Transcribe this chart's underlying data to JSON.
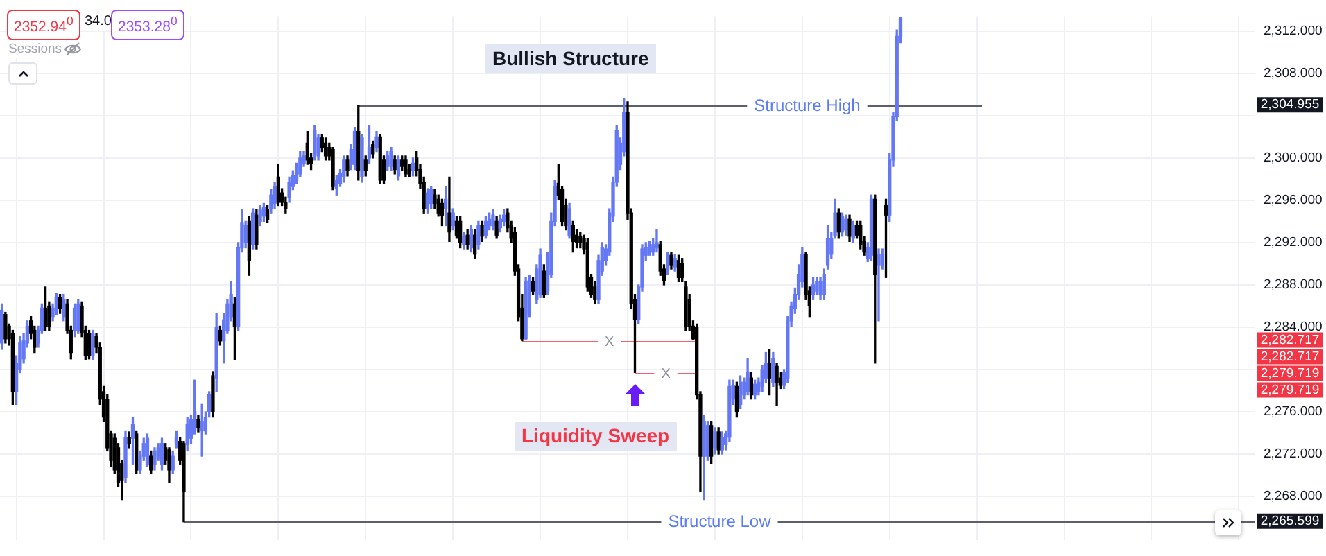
{
  "chart_data": {
    "type": "candlestick",
    "categories": [
      null,
      null,
      null,
      null,
      null,
      null,
      null,
      null,
      null,
      null,
      null,
      null,
      null,
      null,
      null,
      null,
      null,
      null,
      null,
      null,
      null,
      null,
      null,
      null,
      null,
      null,
      null,
      null,
      null,
      null,
      null,
      null,
      null,
      null,
      null,
      null,
      null,
      null,
      null,
      null,
      null,
      null,
      null,
      null,
      null,
      null,
      null,
      null,
      null,
      null,
      null,
      null,
      null,
      null,
      null,
      null,
      null,
      null,
      null,
      null,
      null,
      null,
      null,
      null,
      null,
      null,
      null,
      null,
      null,
      null,
      null,
      null,
      null,
      null,
      null,
      null,
      null,
      null,
      null,
      null,
      null,
      null,
      null,
      null,
      null,
      null,
      null,
      null,
      null,
      null,
      null,
      null,
      null,
      null,
      null,
      null,
      null,
      null,
      null,
      null,
      null,
      null,
      null,
      null,
      null,
      null,
      null,
      null,
      null,
      null,
      null,
      null,
      null,
      null,
      null,
      null,
      null,
      null,
      null,
      null,
      null,
      null,
      null,
      null,
      null,
      null,
      null,
      null,
      null,
      null,
      null,
      null,
      null,
      null,
      null,
      null,
      null,
      null,
      null,
      null,
      null,
      null,
      null,
      null,
      null,
      null,
      null,
      null,
      null,
      null,
      null,
      null,
      null,
      null,
      null,
      null,
      null,
      null,
      null,
      null,
      null,
      null,
      null,
      null,
      null,
      null,
      null,
      null,
      null,
      null,
      null,
      null,
      null,
      null,
      null,
      null,
      null,
      null,
      null,
      null,
      null,
      null,
      null,
      null,
      null,
      null,
      null,
      null,
      null,
      null,
      null,
      null,
      null,
      null,
      null,
      null,
      null,
      null,
      null,
      null,
      null,
      null,
      null,
      null,
      null,
      null,
      null,
      null,
      null,
      null,
      null,
      null,
      null,
      null,
      null,
      null,
      null,
      null,
      null,
      null,
      null,
      null,
      null,
      null,
      null,
      null,
      null,
      null,
      null,
      null,
      null,
      null,
      null,
      null,
      null,
      null,
      null,
      null,
      null,
      null,
      null,
      null,
      null,
      null,
      null,
      null,
      null,
      null,
      null,
      null,
      null,
      null,
      null,
      null,
      null,
      null,
      null,
      null,
      null,
      null,
      null,
      null,
      null,
      null,
      null,
      null,
      null,
      null,
      null,
      null,
      null,
      null,
      null,
      null,
      null,
      null,
      null,
      null,
      null,
      null,
      null,
      null,
      null,
      null,
      null,
      null,
      null,
      null,
      null,
      null,
      null,
      null,
      null,
      null,
      null,
      null,
      null,
      null,
      null,
      null,
      null,
      null,
      null,
      null,
      null,
      null,
      null,
      null,
      null,
      null,
      null,
      null,
      null,
      null,
      null,
      null,
      null,
      null,
      null,
      null,
      null,
      null,
      null,
      null,
      null,
      null,
      null,
      null,
      null,
      null,
      null,
      null,
      null,
      null,
      null,
      null,
      null,
      null,
      null,
      null,
      null,
      null,
      null,
      null,
      null
    ],
    "ohlc": [
      [
        2282.5,
        2286.2,
        2281.9,
        2285.6
      ],
      [
        2285.2,
        2285.4,
        2282.5,
        2282.9
      ],
      [
        2284.1,
        2284.3,
        2282.3,
        2282.9
      ],
      [
        2283.4,
        2283.7,
        2276.7,
        2277.9
      ],
      [
        2277.9,
        2281.3,
        2276.7,
        2280.6
      ],
      [
        2280.0,
        2283.1,
        2279.7,
        2282.5
      ],
      [
        2281.0,
        2283.4,
        2280.6,
        2282.7
      ],
      [
        2282.5,
        2284.6,
        2282.1,
        2284.1
      ],
      [
        2284.6,
        2285.0,
        2282.9,
        2283.4
      ],
      [
        2283.7,
        2284.1,
        2281.6,
        2282.1
      ],
      [
        2282.5,
        2284.1,
        2282.1,
        2283.7
      ],
      [
        2283.7,
        2286.2,
        2283.4,
        2285.8
      ],
      [
        2285.8,
        2287.8,
        2283.7,
        2284.1
      ],
      [
        2286.0,
        2286.4,
        2283.7,
        2284.1
      ],
      [
        2285.0,
        2286.2,
        2284.6,
        2285.8
      ],
      [
        2285.6,
        2287.2,
        2285.2,
        2286.8
      ],
      [
        2286.8,
        2287.1,
        2285.3,
        2285.8
      ],
      [
        2285.0,
        2287.1,
        2284.6,
        2286.6
      ],
      [
        2286.2,
        2286.6,
        2283.4,
        2283.7
      ],
      [
        2283.7,
        2284.1,
        2281.0,
        2281.6
      ],
      [
        2283.7,
        2286.2,
        2283.1,
        2285.8
      ],
      [
        2283.7,
        2286.6,
        2283.4,
        2286.2
      ],
      [
        2286.0,
        2286.4,
        2283.1,
        2283.5
      ],
      [
        2283.7,
        2284.1,
        2280.9,
        2281.3
      ],
      [
        2283.4,
        2283.7,
        2281.0,
        2281.3
      ],
      [
        2281.3,
        2283.7,
        2280.9,
        2283.4
      ],
      [
        2283.1,
        2283.4,
        2281.6,
        2282.1
      ],
      [
        2282.1,
        2282.5,
        2276.7,
        2277.2
      ],
      [
        2277.9,
        2278.4,
        2275.1,
        2275.5
      ],
      [
        2277.2,
        2277.6,
        2272.3,
        2272.6
      ],
      [
        2273.9,
        2274.2,
        2270.8,
        2271.4
      ],
      [
        2273.5,
        2273.9,
        2270.2,
        2270.5
      ],
      [
        2272.6,
        2273.0,
        2268.9,
        2269.3
      ],
      [
        2271.1,
        2271.4,
        2267.7,
        2269.5
      ],
      [
        2269.8,
        2274.2,
        2269.3,
        2273.6
      ],
      [
        2273.6,
        2274.1,
        2272.6,
        2273.0
      ],
      [
        2273.5,
        2275.5,
        2271.0,
        2274.8
      ],
      [
        2273.9,
        2274.2,
        2270.2,
        2270.5
      ],
      [
        2270.5,
        2272.3,
        2270.2,
        2271.8
      ],
      [
        2271.8,
        2273.5,
        2271.4,
        2273.0
      ],
      [
        2271.0,
        2273.9,
        2270.8,
        2273.5
      ],
      [
        2271.8,
        2272.3,
        2270.2,
        2270.5
      ],
      [
        2271.0,
        2272.6,
        2270.5,
        2272.3
      ],
      [
        2271.8,
        2273.0,
        2271.4,
        2272.6
      ],
      [
        2271.0,
        2273.5,
        2270.5,
        2273.0
      ],
      [
        2272.6,
        2273.0,
        2271.0,
        2271.4
      ],
      [
        2272.4,
        2272.6,
        2269.3,
        2270.5
      ],
      [
        2270.5,
        2272.3,
        2270.2,
        2271.8
      ],
      [
        2272.9,
        2274.2,
        2272.6,
        2273.6
      ],
      [
        2273.2,
        2273.6,
        2271.0,
        2271.4
      ],
      [
        2273.0,
        2273.2,
        2265.599,
        2268.5
      ],
      [
        2272.9,
        2275.5,
        2272.3,
        2274.8
      ],
      [
        2273.5,
        2275.7,
        2273.0,
        2275.3
      ],
      [
        2274.2,
        2279.0,
        2273.9,
        2276.0
      ],
      [
        2275.3,
        2275.7,
        2274.1,
        2274.5
      ],
      [
        2274.2,
        2276.7,
        2271.8,
        2275.1
      ],
      [
        2274.2,
        2276.0,
        2273.9,
        2275.5
      ],
      [
        2276.0,
        2277.9,
        2275.5,
        2277.6
      ],
      [
        2279.4,
        2279.8,
        2275.5,
        2276.0
      ],
      [
        2279.2,
        2285.3,
        2277.9,
        2284.0
      ],
      [
        2283.7,
        2284.1,
        2282.3,
        2282.7
      ],
      [
        2282.7,
        2285.3,
        2280.6,
        2284.7
      ],
      [
        2283.7,
        2286.6,
        2283.4,
        2286.2
      ],
      [
        2285.0,
        2288.3,
        2284.6,
        2287.1
      ],
      [
        2286.2,
        2286.8,
        2280.9,
        2284.1
      ],
      [
        2284.1,
        2292.0,
        2283.7,
        2291.5
      ],
      [
        2291.5,
        2295.1,
        2291.1,
        2293.9
      ],
      [
        2292.0,
        2294.0,
        2291.5,
        2293.6
      ],
      [
        2294.0,
        2294.5,
        2288.9,
        2290.3
      ],
      [
        2291.8,
        2295.2,
        2291.4,
        2294.8
      ],
      [
        2294.6,
        2295.1,
        2291.4,
        2291.8
      ],
      [
        2294.0,
        2295.5,
        2293.6,
        2295.1
      ],
      [
        2294.5,
        2295.7,
        2294.0,
        2295.3
      ],
      [
        2295.1,
        2295.5,
        2293.9,
        2294.2
      ],
      [
        2295.2,
        2297.0,
        2294.8,
        2296.5
      ],
      [
        2295.7,
        2297.7,
        2295.2,
        2297.3
      ],
      [
        2298.2,
        2299.4,
        2295.5,
        2295.8
      ],
      [
        2296.7,
        2297.1,
        2295.5,
        2295.8
      ],
      [
        2295.8,
        2296.3,
        2294.8,
        2295.2
      ],
      [
        2296.3,
        2298.2,
        2295.8,
        2297.7
      ],
      [
        2297.3,
        2298.8,
        2297.0,
        2298.3
      ],
      [
        2297.9,
        2299.5,
        2297.6,
        2299.2
      ],
      [
        2298.5,
        2300.6,
        2298.2,
        2300.0
      ],
      [
        2299.5,
        2300.6,
        2299.2,
        2300.2
      ],
      [
        2301.4,
        2302.5,
        2299.4,
        2299.8
      ],
      [
        2300.0,
        2300.4,
        2298.9,
        2299.5
      ],
      [
        2300.4,
        2303.1,
        2299.8,
        2302.6
      ],
      [
        2300.2,
        2302.2,
        2299.8,
        2301.9
      ],
      [
        2301.9,
        2302.2,
        2300.6,
        2301.0
      ],
      [
        2301.4,
        2301.9,
        2299.8,
        2300.2
      ],
      [
        2301.0,
        2301.4,
        2299.8,
        2300.2
      ],
      [
        2300.8,
        2301.0,
        2297.0,
        2297.3
      ],
      [
        2297.1,
        2298.3,
        2296.5,
        2297.9
      ],
      [
        2297.6,
        2298.9,
        2297.3,
        2298.5
      ],
      [
        2298.2,
        2300.2,
        2297.7,
        2299.8
      ],
      [
        2299.8,
        2300.2,
        2298.3,
        2298.8
      ],
      [
        2299.4,
        2301.3,
        2298.9,
        2300.8
      ],
      [
        2299.4,
        2302.9,
        2298.9,
        2302.5
      ],
      [
        2302.5,
        2304.955,
        2297.9,
        2298.8
      ],
      [
        2298.2,
        2302.2,
        2297.7,
        2301.9
      ],
      [
        2299.8,
        2300.2,
        2298.3,
        2298.8
      ],
      [
        2300.0,
        2303.1,
        2299.5,
        2301.0
      ],
      [
        2301.3,
        2301.6,
        2300.0,
        2300.4
      ],
      [
        2301.0,
        2302.5,
        2300.6,
        2302.0
      ],
      [
        2302.0,
        2302.2,
        2297.6,
        2297.9
      ],
      [
        2299.8,
        2300.2,
        2297.6,
        2297.9
      ],
      [
        2299.2,
        2300.6,
        2298.8,
        2300.2
      ],
      [
        2299.2,
        2301.0,
        2298.8,
        2300.6
      ],
      [
        2299.8,
        2300.2,
        2298.5,
        2298.9
      ],
      [
        2298.3,
        2300.2,
        2297.9,
        2299.8
      ],
      [
        2299.8,
        2300.2,
        2298.8,
        2299.2
      ],
      [
        2299.8,
        2300.2,
        2298.2,
        2298.5
      ],
      [
        2298.9,
        2299.4,
        2298.2,
        2298.5
      ],
      [
        2298.8,
        2300.0,
        2298.3,
        2299.5
      ],
      [
        2300.0,
        2300.6,
        2298.3,
        2298.8
      ],
      [
        2298.9,
        2299.4,
        2297.1,
        2297.6
      ],
      [
        2297.7,
        2298.2,
        2294.8,
        2295.2
      ],
      [
        2295.2,
        2297.1,
        2294.8,
        2296.7
      ],
      [
        2295.7,
        2297.3,
        2295.2,
        2297.0
      ],
      [
        2296.5,
        2297.0,
        2295.2,
        2295.7
      ],
      [
        2296.1,
        2296.5,
        2294.5,
        2294.8
      ],
      [
        2295.7,
        2296.1,
        2293.6,
        2294.6
      ],
      [
        2295.2,
        2297.3,
        2293.6,
        2296.1
      ],
      [
        2294.8,
        2298.2,
        2292.1,
        2293.0
      ],
      [
        2293.6,
        2295.2,
        2293.2,
        2294.8
      ],
      [
        2294.0,
        2294.5,
        2292.4,
        2292.7
      ],
      [
        2294.0,
        2294.5,
        2291.5,
        2292.0
      ],
      [
        2291.8,
        2293.0,
        2291.4,
        2292.6
      ],
      [
        2292.7,
        2293.2,
        2291.4,
        2291.8
      ],
      [
        2291.5,
        2293.6,
        2291.1,
        2293.2
      ],
      [
        2292.7,
        2293.2,
        2290.5,
        2290.9
      ],
      [
        2291.8,
        2294.0,
        2291.4,
        2293.6
      ],
      [
        2293.6,
        2294.0,
        2292.1,
        2292.6
      ],
      [
        2292.7,
        2294.5,
        2292.4,
        2294.0
      ],
      [
        2293.6,
        2294.8,
        2293.2,
        2294.2
      ],
      [
        2293.6,
        2295.1,
        2293.2,
        2294.6
      ],
      [
        2294.0,
        2294.5,
        2292.4,
        2292.7
      ],
      [
        2293.4,
        2294.6,
        2293.0,
        2294.2
      ],
      [
        2294.0,
        2295.1,
        2293.6,
        2294.6
      ],
      [
        2294.8,
        2295.2,
        2293.0,
        2293.4
      ],
      [
        2293.6,
        2294.0,
        2292.0,
        2292.4
      ],
      [
        2293.0,
        2293.4,
        2288.9,
        2289.3
      ],
      [
        2289.5,
        2289.9,
        2284.6,
        2285.0
      ],
      [
        2285.8,
        2287.1,
        2282.717,
        2282.9
      ],
      [
        2282.9,
        2288.7,
        2282.8,
        2288.3
      ],
      [
        2285.3,
        2288.9,
        2285.0,
        2288.4
      ],
      [
        2288.3,
        2288.7,
        2287.1,
        2287.4
      ],
      [
        2286.6,
        2289.9,
        2286.2,
        2289.5
      ],
      [
        2287.1,
        2291.4,
        2286.8,
        2290.8
      ],
      [
        2289.3,
        2289.9,
        2286.8,
        2287.1
      ],
      [
        2287.4,
        2291.1,
        2287.1,
        2290.8
      ],
      [
        2289.0,
        2294.8,
        2288.7,
        2294.0
      ],
      [
        2294.0,
        2297.9,
        2293.6,
        2297.3
      ],
      [
        2297.6,
        2299.4,
        2296.1,
        2296.5
      ],
      [
        2297.0,
        2297.3,
        2293.6,
        2294.0
      ],
      [
        2295.5,
        2296.1,
        2293.2,
        2293.6
      ],
      [
        2292.7,
        2295.7,
        2292.4,
        2295.2
      ],
      [
        2293.6,
        2294.0,
        2291.1,
        2292.1
      ],
      [
        2292.7,
        2293.2,
        2291.5,
        2292.0
      ],
      [
        2292.6,
        2293.0,
        2291.5,
        2292.0
      ],
      [
        2292.4,
        2292.7,
        2290.9,
        2291.4
      ],
      [
        2292.0,
        2292.4,
        2287.4,
        2287.8
      ],
      [
        2288.7,
        2289.0,
        2286.8,
        2287.1
      ],
      [
        2287.8,
        2288.3,
        2286.2,
        2286.6
      ],
      [
        2286.6,
        2290.8,
        2286.2,
        2290.3
      ],
      [
        2289.3,
        2292.0,
        2288.9,
        2291.5
      ],
      [
        2290.3,
        2291.8,
        2289.9,
        2291.4
      ],
      [
        2291.1,
        2295.2,
        2290.8,
        2294.8
      ],
      [
        2294.5,
        2298.2,
        2294.0,
        2297.7
      ],
      [
        2297.7,
        2303.1,
        2297.3,
        2302.6
      ],
      [
        2299.4,
        2301.9,
        2298.9,
        2301.4
      ],
      [
        2300.6,
        2305.6,
        2300.2,
        2304.3
      ],
      [
        2304.3,
        2305.3,
        2294.2,
        2294.8
      ],
      [
        2294.8,
        2295.2,
        2285.8,
        2286.2
      ],
      [
        2286.6,
        2287.1,
        2279.719,
        2284.7
      ],
      [
        2284.7,
        2288.0,
        2284.3,
        2287.8
      ],
      [
        2287.8,
        2291.8,
        2287.4,
        2291.4
      ],
      [
        2290.8,
        2292.0,
        2290.3,
        2291.5
      ],
      [
        2291.1,
        2292.1,
        2290.8,
        2291.8
      ],
      [
        2291.1,
        2292.4,
        2290.8,
        2291.8
      ],
      [
        2291.5,
        2293.2,
        2291.1,
        2292.0
      ],
      [
        2291.8,
        2292.1,
        2288.9,
        2289.3
      ],
      [
        2289.5,
        2289.9,
        2288.0,
        2288.4
      ],
      [
        2289.5,
        2291.1,
        2289.0,
        2290.8
      ],
      [
        2290.8,
        2291.1,
        2289.5,
        2289.9
      ],
      [
        2289.7,
        2290.9,
        2289.3,
        2290.5
      ],
      [
        2290.3,
        2290.8,
        2288.3,
        2288.7
      ],
      [
        2290.0,
        2290.5,
        2288.3,
        2288.7
      ],
      [
        2287.8,
        2288.3,
        2283.7,
        2284.1
      ],
      [
        2286.6,
        2287.1,
        2283.7,
        2284.1
      ],
      [
        2284.1,
        2284.6,
        2282.8,
        2282.9
      ],
      [
        2284.0,
        2284.3,
        2277.2,
        2277.6
      ],
      [
        2277.6,
        2277.9,
        2268.5,
        2271.8
      ],
      [
        2271.8,
        2275.7,
        2267.7,
        2275.1
      ],
      [
        2271.8,
        2275.1,
        2271.4,
        2274.7
      ],
      [
        2274.7,
        2275.1,
        2271.1,
        2271.8
      ],
      [
        2272.6,
        2274.5,
        2272.0,
        2274.1
      ],
      [
        2274.1,
        2274.5,
        2272.0,
        2272.4
      ],
      [
        2272.4,
        2274.1,
        2272.0,
        2273.6
      ],
      [
        2272.9,
        2274.2,
        2272.4,
        2273.9
      ],
      [
        2273.6,
        2279.0,
        2273.2,
        2278.4
      ],
      [
        2277.2,
        2279.0,
        2276.7,
        2278.5
      ],
      [
        2278.4,
        2278.8,
        2275.5,
        2276.0
      ],
      [
        2276.7,
        2279.4,
        2276.3,
        2278.8
      ],
      [
        2277.6,
        2279.2,
        2277.2,
        2278.8
      ],
      [
        2277.9,
        2281.0,
        2277.6,
        2279.7
      ],
      [
        2279.2,
        2279.7,
        2277.2,
        2277.6
      ],
      [
        2277.6,
        2279.0,
        2277.2,
        2278.6
      ],
      [
        2277.9,
        2279.2,
        2277.6,
        2278.8
      ],
      [
        2278.4,
        2280.4,
        2277.9,
        2280.0
      ],
      [
        2279.2,
        2281.6,
        2278.8,
        2280.6
      ],
      [
        2280.6,
        2281.9,
        2277.6,
        2279.2
      ],
      [
        2278.8,
        2281.6,
        2278.4,
        2281.0
      ],
      [
        2280.3,
        2280.6,
        2276.6,
        2278.8
      ],
      [
        2279.2,
        2279.7,
        2278.2,
        2278.5
      ],
      [
        2278.5,
        2280.0,
        2278.2,
        2279.7
      ],
      [
        2279.2,
        2285.0,
        2278.8,
        2284.6
      ],
      [
        2284.6,
        2286.4,
        2284.1,
        2286.0
      ],
      [
        2285.8,
        2287.7,
        2285.3,
        2287.1
      ],
      [
        2287.1,
        2289.9,
        2286.6,
        2289.0
      ],
      [
        2288.3,
        2291.5,
        2287.8,
        2290.9
      ],
      [
        2290.9,
        2291.1,
        2286.6,
        2287.1
      ],
      [
        2287.4,
        2287.8,
        2285.0,
        2286.0
      ],
      [
        2287.1,
        2288.7,
        2286.6,
        2288.0
      ],
      [
        2287.4,
        2288.7,
        2287.1,
        2288.3
      ],
      [
        2287.1,
        2288.7,
        2286.6,
        2288.3
      ],
      [
        2287.1,
        2289.5,
        2286.6,
        2289.0
      ],
      [
        2289.9,
        2293.6,
        2289.5,
        2292.4
      ],
      [
        2290.9,
        2293.0,
        2290.5,
        2292.4
      ],
      [
        2292.7,
        2296.1,
        2292.4,
        2294.8
      ],
      [
        2294.8,
        2295.2,
        2292.4,
        2293.0
      ],
      [
        2293.0,
        2294.8,
        2292.6,
        2294.5
      ],
      [
        2293.2,
        2294.6,
        2292.7,
        2294.2
      ],
      [
        2294.2,
        2294.6,
        2292.1,
        2292.6
      ],
      [
        2292.4,
        2294.0,
        2292.0,
        2293.6
      ],
      [
        2293.6,
        2294.0,
        2292.4,
        2292.7
      ],
      [
        2293.6,
        2294.0,
        2291.4,
        2291.8
      ],
      [
        2292.1,
        2292.6,
        2290.8,
        2291.1
      ],
      [
        2290.5,
        2292.0,
        2290.2,
        2291.5
      ],
      [
        2290.8,
        2296.5,
        2290.3,
        2296.1
      ],
      [
        2296.1,
        2296.5,
        2280.6,
        2289.0
      ],
      [
        2289.9,
        2291.4,
        2284.6,
        2290.9
      ],
      [
        2289.9,
        2291.4,
        2289.5,
        2290.9
      ],
      [
        2295.5,
        2296.1,
        2288.7,
        2294.6
      ],
      [
        2294.6,
        2300.4,
        2294.0,
        2299.8
      ],
      [
        2299.8,
        2304.3,
        2299.2,
        2303.9
      ],
      [
        2303.9,
        2312.1,
        2303.5,
        2311.5
      ],
      [
        2311.5,
        2313.3,
        2310.9,
        2313.2
      ],
      null,
      null,
      null,
      null,
      null,
      null,
      null,
      null,
      null,
      null,
      null,
      null,
      null,
      null,
      null,
      null,
      null,
      null,
      null,
      null,
      null,
      null,
      null,
      null,
      null,
      null,
      null,
      null,
      null,
      null,
      null,
      null,
      null,
      null,
      null,
      null,
      null,
      null,
      null,
      null,
      null,
      null,
      null,
      null,
      null,
      null,
      null,
      null,
      null,
      null,
      null,
      null,
      null,
      null,
      null,
      null,
      null,
      null,
      null,
      null,
      null,
      null,
      null,
      null,
      null,
      null,
      null,
      null,
      null,
      null,
      null,
      null,
      null,
      null,
      null,
      null,
      null,
      null,
      null,
      null,
      null,
      null,
      null,
      null,
      null,
      null,
      null,
      null,
      null,
      null,
      null,
      null,
      null,
      null,
      null,
      null,
      null
    ],
    "colors": [
      "#6478f5",
      "#000000",
      "#000000",
      "#000000",
      "#6478f5",
      "#6478f5",
      "#6478f5",
      "#6478f5",
      "#000000",
      "#000000",
      "#6478f5",
      "#6478f5",
      "#000000",
      "#000000",
      "#6478f5",
      "#6478f5",
      "#000000",
      "#6478f5",
      "#000000",
      "#000000",
      "#6478f5",
      "#6478f5",
      "#000000",
      "#000000",
      "#000000",
      "#6478f5",
      "#000000",
      "#000000",
      "#000000",
      "#000000",
      "#000000",
      "#000000",
      "#000000",
      "#000000",
      "#6478f5",
      "#000000",
      "#6478f5",
      "#000000",
      "#6478f5",
      "#6478f5",
      "#6478f5",
      "#000000",
      "#6478f5",
      "#6478f5",
      "#6478f5",
      "#000000",
      "#000000",
      "#6478f5",
      "#6478f5",
      "#000000",
      "#000000",
      "#6478f5",
      "#6478f5",
      "#6478f5",
      "#000000",
      "#6478f5",
      "#6478f5",
      "#6478f5",
      "#000000",
      "#6478f5",
      "#000000",
      "#6478f5",
      "#6478f5",
      "#6478f5",
      "#000000",
      "#6478f5",
      "#6478f5",
      "#6478f5",
      "#000000",
      "#6478f5",
      "#000000",
      "#6478f5",
      "#6478f5",
      "#000000",
      "#6478f5",
      "#6478f5",
      "#000000",
      "#000000",
      "#000000",
      "#6478f5",
      "#6478f5",
      "#6478f5",
      "#6478f5",
      "#6478f5",
      "#000000",
      "#000000",
      "#6478f5",
      "#6478f5",
      "#000000",
      "#000000",
      "#000000",
      "#000000",
      "#6478f5",
      "#6478f5",
      "#6478f5",
      "#000000",
      "#6478f5",
      "#6478f5",
      "#000000",
      "#6478f5",
      "#000000",
      "#6478f5",
      "#000000",
      "#6478f5",
      "#000000",
      "#000000",
      "#6478f5",
      "#6478f5",
      "#000000",
      "#6478f5",
      "#000000",
      "#000000",
      "#000000",
      "#6478f5",
      "#000000",
      "#000000",
      "#000000",
      "#6478f5",
      "#6478f5",
      "#000000",
      "#000000",
      "#000000",
      "#6478f5",
      "#000000",
      "#6478f5",
      "#000000",
      "#000000",
      "#6478f5",
      "#000000",
      "#6478f5",
      "#000000",
      "#6478f5",
      "#000000",
      "#6478f5",
      "#6478f5",
      "#6478f5",
      "#000000",
      "#6478f5",
      "#6478f5",
      "#000000",
      "#000000",
      "#000000",
      "#000000",
      "#000000",
      "#6478f5",
      "#6478f5",
      "#000000",
      "#6478f5",
      "#6478f5",
      "#000000",
      "#6478f5",
      "#6478f5",
      "#6478f5",
      "#000000",
      "#000000",
      "#000000",
      "#6478f5",
      "#000000",
      "#000000",
      "#000000",
      "#000000",
      "#000000",
      "#000000",
      "#000000",
      "#6478f5",
      "#6478f5",
      "#6478f5",
      "#6478f5",
      "#6478f5",
      "#6478f5",
      "#6478f5",
      "#6478f5",
      "#000000",
      "#000000",
      "#000000",
      "#6478f5",
      "#6478f5",
      "#6478f5",
      "#6478f5",
      "#6478f5",
      "#6478f5",
      "#000000",
      "#000000",
      "#6478f5",
      "#000000",
      "#6478f5",
      "#000000",
      "#000000",
      "#000000",
      "#000000",
      "#000000",
      "#000000",
      "#000000",
      "#6478f5",
      "#6478f5",
      "#000000",
      "#6478f5",
      "#000000",
      "#6478f5",
      "#6478f5",
      "#6478f5",
      "#6478f5",
      "#000000",
      "#6478f5",
      "#6478f5",
      "#6478f5",
      "#000000",
      "#6478f5",
      "#6478f5",
      "#6478f5",
      "#6478f5",
      "#000000",
      "#6478f5",
      "#000000",
      "#000000",
      "#6478f5",
      "#6478f5",
      "#6478f5",
      "#6478f5",
      "#6478f5",
      "#6478f5",
      "#000000",
      "#000000",
      "#6478f5",
      "#6478f5",
      "#6478f5",
      "#6478f5",
      "#6478f5",
      "#6478f5",
      "#6478f5",
      "#000000",
      "#6478f5",
      "#6478f5",
      "#000000",
      "#6478f5",
      "#000000",
      "#000000",
      "#000000",
      "#6478f5",
      "#6478f5",
      "#000000",
      "#6478f5",
      "#6478f5",
      "#000000",
      "#6478f5",
      "#6478f5",
      "#6478f5",
      "#6478f5",
      null,
      null,
      null,
      null,
      null,
      null,
      null,
      null,
      null,
      null,
      null,
      null,
      null,
      null,
      null,
      null,
      null,
      null,
      null,
      null,
      null,
      null,
      null,
      null,
      null,
      null,
      null,
      null,
      null,
      null,
      null,
      null,
      null,
      null,
      null,
      null,
      null,
      null,
      null,
      null,
      null,
      null,
      null,
      null,
      null,
      null,
      null,
      null,
      null,
      null,
      null,
      null,
      null,
      null,
      null,
      null,
      null,
      null,
      null,
      null,
      null,
      null,
      null,
      null,
      null,
      null,
      null,
      null,
      null,
      null,
      null,
      null,
      null,
      null,
      null,
      null,
      null,
      null,
      null,
      null,
      null,
      null,
      null,
      null,
      null,
      null,
      null,
      null,
      null,
      null,
      null,
      null,
      null,
      null,
      null,
      null,
      null
    ],
    "ylim": [
      2263.9,
      2313.4
    ],
    "yticks": [
      {
        "value": 2268,
        "label": "2,268.000"
      },
      {
        "value": 2272,
        "label": "2,272.000"
      },
      {
        "value": 2276,
        "label": "2,276.000"
      },
      {
        "value": 2280,
        "label": null
      },
      {
        "value": 2284,
        "label": "2,284.000"
      },
      {
        "value": 2288,
        "label": "2,288.000"
      },
      {
        "value": 2292,
        "label": "2,292.000"
      },
      {
        "value": 2296,
        "label": "2,296.000"
      },
      {
        "value": 2300,
        "label": "2,300.000"
      },
      {
        "value": 2304,
        "label": null
      },
      {
        "value": 2308,
        "label": "2,308.000"
      },
      {
        "value": 2312,
        "label": "2,312.000"
      }
    ],
    "grid": true,
    "ref_lines": [
      {
        "axis": "y",
        "value": 2304.955,
        "label": "Structure High",
        "color": "#5d606b"
      },
      {
        "axis": "y",
        "value": 2265.599,
        "label": "Structure Low",
        "color": "#5d606b"
      },
      {
        "axis": "y",
        "value": 2282.717,
        "label": "X",
        "color": "#f4606c"
      },
      {
        "axis": "y",
        "value": 2279.719,
        "label": "X",
        "color": "#f4606c"
      }
    ],
    "annotations": [
      "Bullish Structure",
      "Liquidity Sweep",
      "2352.94$^{0}$",
      "34.0",
      "2353.28$^{0}$",
      "Sessions",
      "2,304.955",
      "2,282.717",
      "2,282.717",
      "2,279.719",
      "2,279.719",
      "2,265.599"
    ]
  }
}
